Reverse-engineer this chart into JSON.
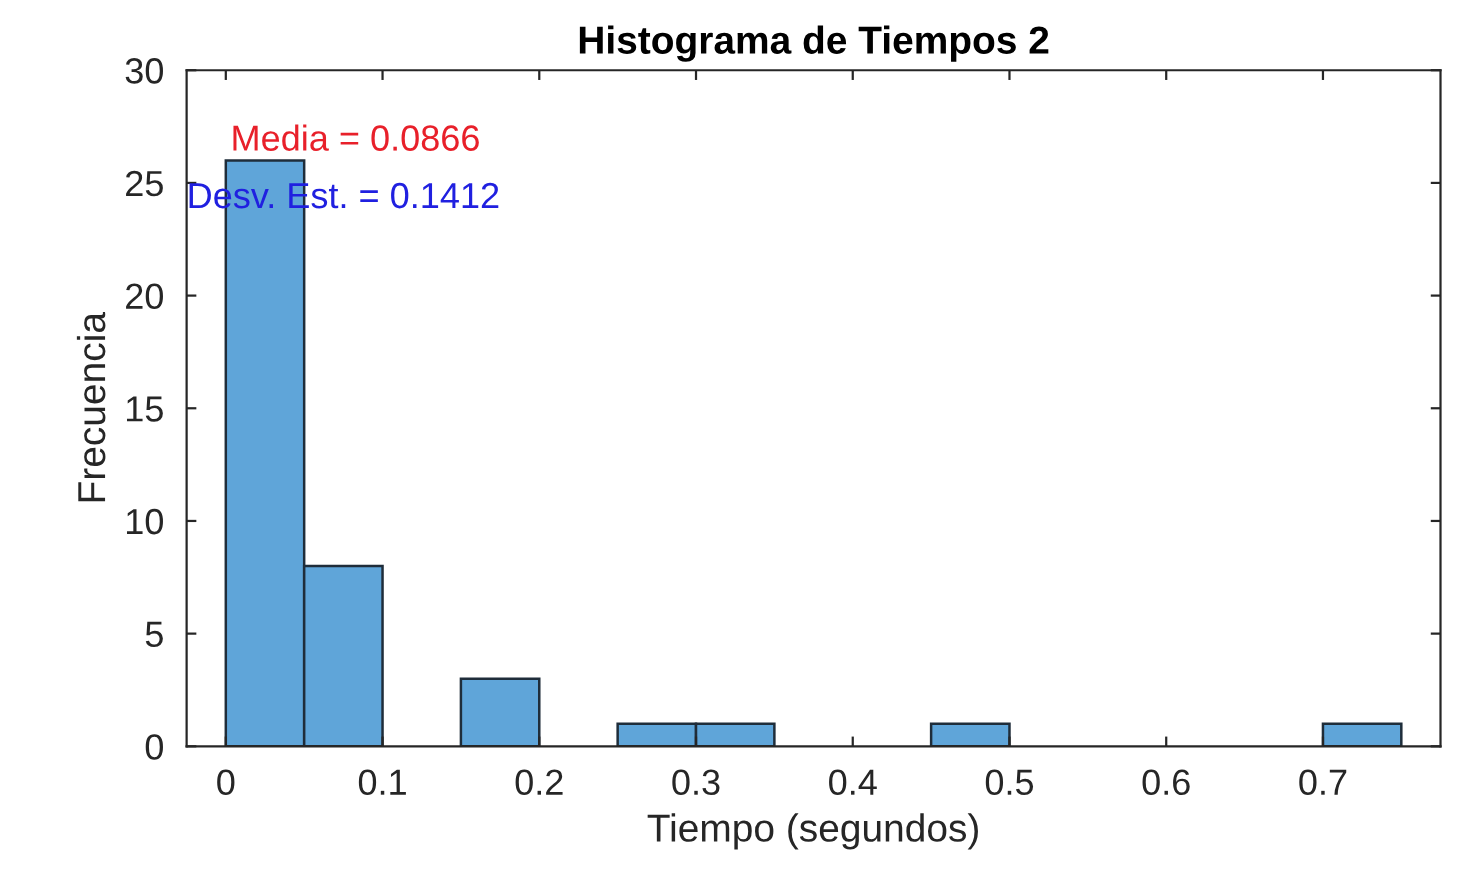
{
  "chart_data": {
    "type": "histogram",
    "title": "Histograma de Tiempos 2",
    "xlabel": "Tiempo (segundos)",
    "ylabel": "Frecuencia",
    "bins": [
      0,
      0.05,
      0.1,
      0.15,
      0.2,
      0.25,
      0.3,
      0.35,
      0.4,
      0.45,
      0.5,
      0.55,
      0.6,
      0.65,
      0.7,
      0.75
    ],
    "values": [
      26,
      8,
      0,
      3,
      0,
      1,
      1,
      0,
      0,
      1,
      0,
      0,
      0,
      0,
      1
    ],
    "color": "#5fa5d9",
    "xlim": [
      -0.025,
      0.775
    ],
    "xticks": [
      0,
      0.1,
      0.2,
      0.3,
      0.4,
      0.5,
      0.6,
      0.7
    ],
    "ylim": [
      0,
      30
    ],
    "yticks": [
      0,
      5,
      10,
      15,
      20,
      25,
      30
    ],
    "annotations": [
      "Media = 0.0866",
      "Desv. Est. = 0.1412"
    ],
    "grid": false,
    "legend": false
  }
}
